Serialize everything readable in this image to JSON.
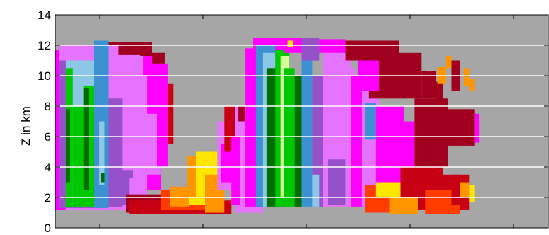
{
  "chart_data": {
    "type": "heatmap",
    "title": "",
    "xlabel": "",
    "ylabel": "Z in km",
    "ylim": [
      0,
      14
    ],
    "y_ticks": [
      "0",
      "2",
      "4",
      "6",
      "8",
      "10",
      "12",
      "14"
    ],
    "x_tick_labels": [],
    "grid": "horizontal white lines at 2, 4, 6, 8, 10, 12",
    "background_color": "#a6a6a6",
    "grid_color": "#ffffff",
    "palette": {
      "darkred": "#a0001e",
      "red": "#c80014",
      "orangered": "#ff3c00",
      "orange": "#ff9600",
      "yellow": "#ffe600",
      "magenta": "#ff00ff",
      "pink": "#e673ff",
      "purple": "#9650c8",
      "blue": "#3c91d2",
      "lightblue": "#8cc8e6",
      "green": "#00c800",
      "darkgreen": "#006e00",
      "lightgreen": "#d2ff96"
    },
    "cells": [
      {
        "x": [
          0.0,
          0.6
        ],
        "y": [
          1.2,
          11.7
        ],
        "c": "magenta"
      },
      {
        "x": [
          0.6,
          5.2
        ],
        "y": [
          1.2,
          11.2
        ],
        "c": "pink"
      },
      {
        "x": [
          5.2,
          6.0
        ],
        "y": [
          2.5,
          10.5
        ],
        "c": "magenta"
      },
      {
        "x": [
          5.0,
          6.0
        ],
        "y": [
          3.5,
          7.5
        ],
        "c": "pink"
      },
      {
        "x": [
          5.0,
          5.8
        ],
        "y": [
          10.0,
          11.5
        ],
        "c": "magenta"
      },
      {
        "x": [
          5.8,
          6.4
        ],
        "y": [
          4.0,
          10.8
        ],
        "c": "magenta"
      },
      {
        "x": [
          6.4,
          6.7
        ],
        "y": [
          5.5,
          9.5
        ],
        "c": "red"
      },
      {
        "x": [
          2.4,
          5.5
        ],
        "y": [
          11.3,
          12.2
        ],
        "c": "darkred"
      },
      {
        "x": [
          5.5,
          6.2
        ],
        "y": [
          10.8,
          11.5
        ],
        "c": "darkred"
      },
      {
        "x": [
          3.6,
          4.8
        ],
        "y": [
          1.5,
          11.4
        ],
        "c": "pink"
      },
      {
        "x": [
          0.2,
          3.6
        ],
        "y": [
          1.3,
          12.0
        ],
        "c": "pink"
      },
      {
        "x": [
          0.2,
          3.0
        ],
        "y": [
          1.3,
          11.0
        ],
        "c": "purple"
      },
      {
        "x": [
          2.2,
          3.0
        ],
        "y": [
          1.3,
          12.3
        ],
        "c": "blue"
      },
      {
        "x": [
          0.6,
          2.2
        ],
        "y": [
          1.4,
          11.0
        ],
        "c": "lightblue"
      },
      {
        "x": [
          0.6,
          1.0
        ],
        "y": [
          1.4,
          10.5
        ],
        "c": "green"
      },
      {
        "x": [
          1.0,
          1.6
        ],
        "y": [
          1.4,
          8.0
        ],
        "c": "green"
      },
      {
        "x": [
          1.6,
          2.2
        ],
        "y": [
          1.4,
          9.3
        ],
        "c": "green"
      },
      {
        "x": [
          1.6,
          1.9
        ],
        "y": [
          2.5,
          9.2
        ],
        "c": "darkgreen"
      },
      {
        "x": [
          0.6,
          0.8
        ],
        "y": [
          3.0,
          7.8
        ],
        "c": "darkgreen"
      },
      {
        "x": [
          2.5,
          2.8
        ],
        "y": [
          2.8,
          7.0
        ],
        "c": "lightblue"
      },
      {
        "x": [
          2.6,
          2.8
        ],
        "y": [
          3.0,
          3.6
        ],
        "c": "darkgreen"
      },
      {
        "x": [
          3.0,
          3.8
        ],
        "y": [
          1.4,
          8.5
        ],
        "c": "purple"
      },
      {
        "x": [
          3.6,
          4.4
        ],
        "y": [
          1.5,
          3.8
        ],
        "c": "purple"
      },
      {
        "x": [
          4.2,
          5.0
        ],
        "y": [
          2.0,
          3.3
        ],
        "c": "pink"
      },
      {
        "x": [
          4.0,
          6.7
        ],
        "y": [
          1.0,
          2.2
        ],
        "c": "darkred"
      },
      {
        "x": [
          4.2,
          10.0
        ],
        "y": [
          0.9,
          1.8
        ],
        "c": "red"
      },
      {
        "x": [
          6.0,
          8.5
        ],
        "y": [
          1.2,
          2.5
        ],
        "c": "orangered"
      },
      {
        "x": [
          6.5,
          7.6
        ],
        "y": [
          1.4,
          2.7
        ],
        "c": "orange"
      },
      {
        "x": [
          7.6,
          8.2
        ],
        "y": [
          1.5,
          4.0
        ],
        "c": "yellow"
      },
      {
        "x": [
          7.5,
          8.6
        ],
        "y": [
          2.0,
          4.7
        ],
        "c": "orange"
      },
      {
        "x": [
          8.0,
          9.2
        ],
        "y": [
          1.5,
          5.0
        ],
        "c": "yellow"
      },
      {
        "x": [
          8.5,
          9.6
        ],
        "y": [
          1.0,
          3.5
        ],
        "c": "orange"
      },
      {
        "x": [
          9.2,
          10.2
        ],
        "y": [
          2.5,
          7.0
        ],
        "c": "pink"
      },
      {
        "x": [
          9.4,
          10.0
        ],
        "y": [
          3.0,
          5.5
        ],
        "c": "magenta"
      },
      {
        "x": [
          9.6,
          10.4
        ],
        "y": [
          5.0,
          8.0
        ],
        "c": "red"
      },
      {
        "x": [
          10.2,
          11.8
        ],
        "y": [
          1.0,
          8.0
        ],
        "c": "pink"
      },
      {
        "x": [
          10.0,
          10.5
        ],
        "y": [
          1.5,
          6.0
        ],
        "c": "magenta"
      },
      {
        "x": [
          10.4,
          10.8
        ],
        "y": [
          7.0,
          8.0
        ],
        "c": "darkred"
      },
      {
        "x": [
          10.8,
          12.0
        ],
        "y": [
          1.4,
          11.8
        ],
        "c": "magenta"
      },
      {
        "x": [
          11.2,
          13.2
        ],
        "y": [
          1.4,
          12.5
        ],
        "c": "magenta"
      },
      {
        "x": [
          11.4,
          12.5
        ],
        "y": [
          1.4,
          12.0
        ],
        "c": "blue"
      },
      {
        "x": [
          11.8,
          12.5
        ],
        "y": [
          1.4,
          11.5
        ],
        "c": "lightblue"
      },
      {
        "x": [
          12.0,
          12.6
        ],
        "y": [
          1.4,
          10.5
        ],
        "c": "darkgreen"
      },
      {
        "x": [
          12.5,
          13.3
        ],
        "y": [
          1.4,
          11.7
        ],
        "c": "green"
      },
      {
        "x": [
          12.8,
          13.3
        ],
        "y": [
          2.0,
          11.3
        ],
        "c": "lightgreen"
      },
      {
        "x": [
          13.0,
          13.6
        ],
        "y": [
          1.4,
          10.5
        ],
        "c": "green"
      },
      {
        "x": [
          13.6,
          14.0
        ],
        "y": [
          1.4,
          10.0
        ],
        "c": "darkgreen"
      },
      {
        "x": [
          14.0,
          14.6
        ],
        "y": [
          1.4,
          11.0
        ],
        "c": "blue"
      },
      {
        "x": [
          14.6,
          15.2
        ],
        "y": [
          1.4,
          10.0
        ],
        "c": "purple"
      },
      {
        "x": [
          14.0,
          15.0
        ],
        "y": [
          11.0,
          12.5
        ],
        "c": "purple"
      },
      {
        "x": [
          14.6,
          15.0
        ],
        "y": [
          1.4,
          3.5
        ],
        "c": "lightblue"
      },
      {
        "x": [
          13.0,
          14.0
        ],
        "y": [
          11.5,
          12.5
        ],
        "c": "magenta"
      },
      {
        "x": [
          13.2,
          13.5
        ],
        "y": [
          11.9,
          12.3
        ],
        "c": "yellow"
      },
      {
        "x": [
          15.2,
          16.8
        ],
        "y": [
          1.4,
          11.5
        ],
        "c": "pink"
      },
      {
        "x": [
          15.0,
          16.5
        ],
        "y": [
          11.5,
          12.4
        ],
        "c": "magenta"
      },
      {
        "x": [
          16.5,
          17.0
        ],
        "y": [
          6.0,
          10.5
        ],
        "c": "pink"
      },
      {
        "x": [
          15.5,
          16.5
        ],
        "y": [
          1.5,
          4.5
        ],
        "c": "purple"
      },
      {
        "x": [
          16.8,
          17.5
        ],
        "y": [
          1.4,
          10.0
        ],
        "c": "magenta"
      },
      {
        "x": [
          17.4,
          18.4
        ],
        "y": [
          1.4,
          9.5
        ],
        "c": "pink"
      },
      {
        "x": [
          17.6,
          18.2
        ],
        "y": [
          5.8,
          8.2
        ],
        "c": "blue"
      },
      {
        "x": [
          18.2,
          18.8
        ],
        "y": [
          1.4,
          8.0
        ],
        "c": "magenta"
      },
      {
        "x": [
          17.8,
          20.8
        ],
        "y": [
          8.5,
          11.5
        ],
        "c": "darkred"
      },
      {
        "x": [
          16.5,
          19.5
        ],
        "y": [
          11.0,
          12.3
        ],
        "c": "darkred"
      },
      {
        "x": [
          17.2,
          18.4
        ],
        "y": [
          9.0,
          11.0
        ],
        "c": "magenta"
      },
      {
        "x": [
          18.8,
          19.8
        ],
        "y": [
          1.4,
          8.0
        ],
        "c": "magenta"
      },
      {
        "x": [
          19.8,
          20.4
        ],
        "y": [
          4.0,
          7.0
        ],
        "c": "magenta"
      },
      {
        "x": [
          20.4,
          22.3
        ],
        "y": [
          4.0,
          8.5
        ],
        "c": "darkred"
      },
      {
        "x": [
          20.8,
          21.6
        ],
        "y": [
          8.5,
          10.3
        ],
        "c": "darkred"
      },
      {
        "x": [
          21.6,
          22.0
        ],
        "y": [
          6.0,
          9.6
        ],
        "c": "darkred"
      },
      {
        "x": [
          22.3,
          23.8
        ],
        "y": [
          5.4,
          7.8
        ],
        "c": "darkred"
      },
      {
        "x": [
          23.8,
          24.1
        ],
        "y": [
          5.6,
          7.5
        ],
        "c": "magenta"
      },
      {
        "x": [
          22.5,
          23.0
        ],
        "y": [
          9.0,
          11.0
        ],
        "c": "darkred"
      },
      {
        "x": [
          21.7,
          22.2
        ],
        "y": [
          9.5,
          10.6
        ],
        "c": "orange"
      },
      {
        "x": [
          22.2,
          22.5
        ],
        "y": [
          10.5,
          11.3
        ],
        "c": "orange"
      },
      {
        "x": [
          23.2,
          23.5
        ],
        "y": [
          9.3,
          10.5
        ],
        "c": "orange"
      },
      {
        "x": [
          23.5,
          23.8
        ],
        "y": [
          9.0,
          9.8
        ],
        "c": "orange"
      },
      {
        "x": [
          17.6,
          20.5
        ],
        "y": [
          1.0,
          2.8
        ],
        "c": "orangered"
      },
      {
        "x": [
          18.2,
          19.6
        ],
        "y": [
          2.0,
          3.0
        ],
        "c": "yellow"
      },
      {
        "x": [
          19.6,
          22.0
        ],
        "y": [
          1.5,
          4.0
        ],
        "c": "red"
      },
      {
        "x": [
          19.0,
          20.6
        ],
        "y": [
          0.9,
          2.0
        ],
        "c": "orange"
      },
      {
        "x": [
          20.6,
          23.0
        ],
        "y": [
          1.2,
          3.5
        ],
        "c": "red"
      },
      {
        "x": [
          21.0,
          22.5
        ],
        "y": [
          0.9,
          2.5
        ],
        "c": "orangered"
      },
      {
        "x": [
          22.5,
          23.5
        ],
        "y": [
          1.2,
          3.5
        ],
        "c": "red"
      },
      {
        "x": [
          23.0,
          23.5
        ],
        "y": [
          2.0,
          3.0
        ],
        "c": "orange"
      },
      {
        "x": [
          23.5,
          23.8
        ],
        "y": [
          1.7,
          2.8
        ],
        "c": "yellow"
      },
      {
        "x": [
          22.0,
          23.0
        ],
        "y": [
          0.9,
          1.5
        ],
        "c": "orangered"
      }
    ]
  }
}
